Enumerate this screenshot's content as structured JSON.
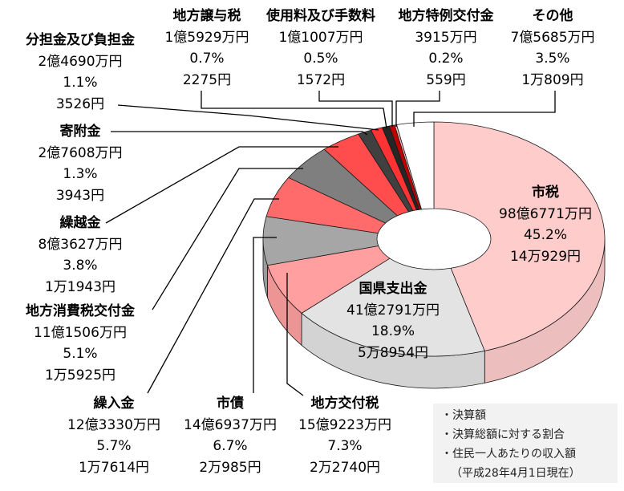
{
  "chart_data": {
    "type": "pie",
    "variant": "3d-donut",
    "slices": [
      {
        "name": "市税",
        "amount": "98億6771万円",
        "percent": 45.2,
        "percent_label": "45.2%",
        "per_capita": "14万929円",
        "color": "#ffcccc"
      },
      {
        "name": "国県支出金",
        "amount": "41億2791万円",
        "percent": 18.9,
        "percent_label": "18.9%",
        "per_capita": "5万8954円",
        "color": "#e3e3e3"
      },
      {
        "name": "地方交付税",
        "amount": "15億9223万円",
        "percent": 7.3,
        "percent_label": "7.3%",
        "per_capita": "2万2740円",
        "color": "#ff9f9f"
      },
      {
        "name": "市債",
        "amount": "14億6937万円",
        "percent": 6.7,
        "percent_label": "6.7%",
        "per_capita": "2万985円",
        "color": "#a6a6a6"
      },
      {
        "name": "繰入金",
        "amount": "12億3330万円",
        "percent": 5.7,
        "percent_label": "5.7%",
        "per_capita": "1万7614円",
        "color": "#ff6b6b"
      },
      {
        "name": "地方消費税交付金",
        "amount": "11億1506万円",
        "percent": 5.1,
        "percent_label": "5.1%",
        "per_capita": "1万5925円",
        "color": "#7f7f7f"
      },
      {
        "name": "繰越金",
        "amount": "8億3627万円",
        "percent": 3.8,
        "percent_label": "3.8%",
        "per_capita": "1万1943円",
        "color": "#ff4d4d"
      },
      {
        "name": "寄附金",
        "amount": "2億7608万円",
        "percent": 1.3,
        "percent_label": "1.3%",
        "per_capita": "3943円",
        "color": "#404040"
      },
      {
        "name": "分担金及び負担金",
        "amount": "2億4690万円",
        "percent": 1.1,
        "percent_label": "1.1%",
        "per_capita": "3526円",
        "color": "#ff3333"
      },
      {
        "name": "地方譲与税",
        "amount": "1億5929万円",
        "percent": 0.7,
        "percent_label": "0.7%",
        "per_capita": "2275円",
        "color": "#262626"
      },
      {
        "name": "使用料及び手数料",
        "amount": "1億1007万円",
        "percent": 0.5,
        "percent_label": "0.5%",
        "per_capita": "1572円",
        "color": "#c00000"
      },
      {
        "name": "地方特例交付金",
        "amount": "3915万円",
        "percent": 0.2,
        "percent_label": "0.2%",
        "per_capita": "559円",
        "color": "#ffb3b3"
      },
      {
        "name": "その他",
        "amount": "7億5685万円",
        "percent": 3.5,
        "percent_label": "3.5%",
        "per_capita": "1万809円",
        "color": "#ffffff"
      }
    ]
  },
  "legend": {
    "items": [
      "・決算額",
      "・決算総額に対する割合",
      "・住民一人あたりの収入額"
    ],
    "note": "（平成28年4月1日現在）",
    "background": "#f2f2f2"
  }
}
